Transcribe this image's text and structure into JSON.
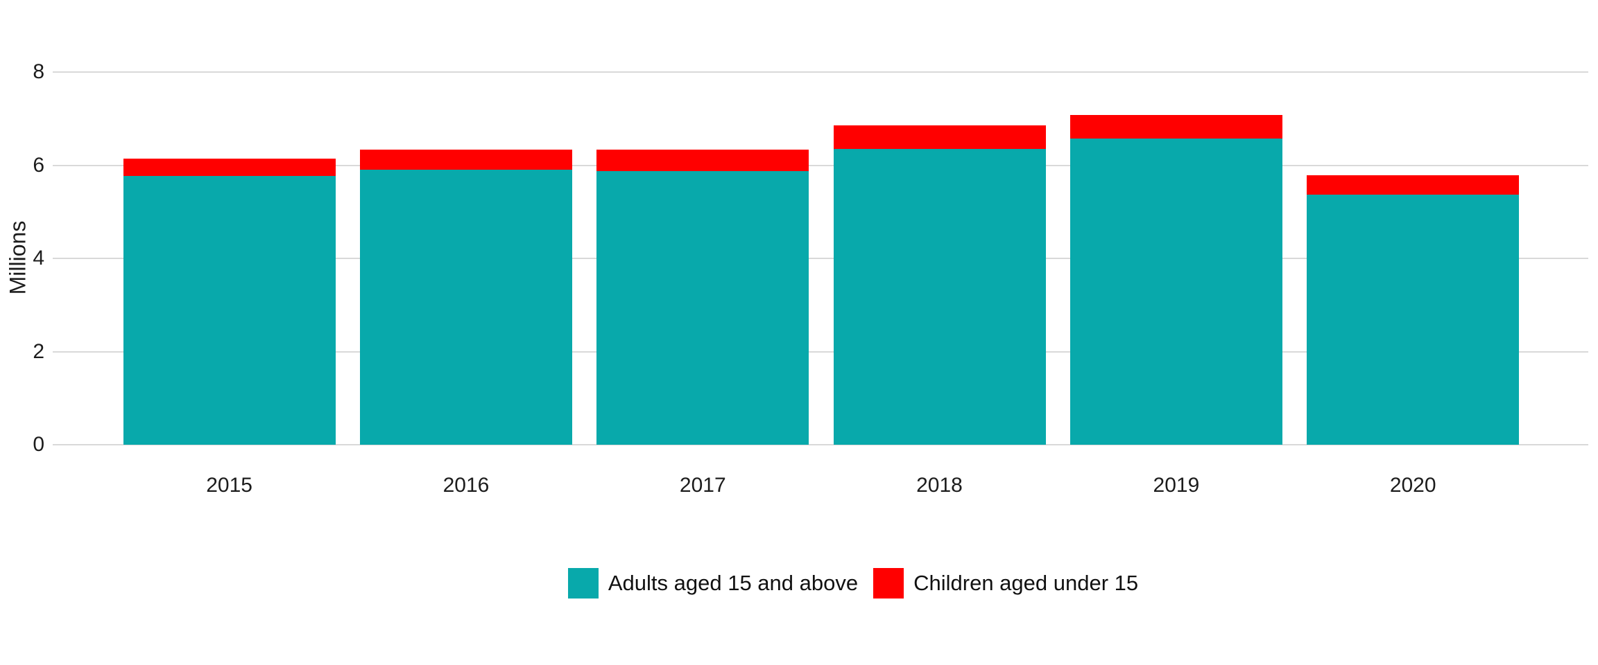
{
  "chart_data": {
    "type": "bar",
    "stacked": true,
    "title": "",
    "xlabel": "",
    "ylabel": "Millions",
    "categories": [
      "2015",
      "2016",
      "2017",
      "2018",
      "2019",
      "2020"
    ],
    "series": [
      {
        "name": "Adults aged 15 and above",
        "color": "#08a9ab",
        "values": [
          5.77,
          5.9,
          5.88,
          6.35,
          6.57,
          5.37
        ]
      },
      {
        "name": "Children aged under 15",
        "color": "#ff0000",
        "values": [
          0.37,
          0.44,
          0.45,
          0.5,
          0.51,
          0.42
        ]
      }
    ],
    "totals": [
      6.14,
      6.34,
      6.33,
      6.85,
      7.08,
      5.79
    ],
    "ylim": [
      0,
      8
    ],
    "yticks": [
      0,
      2,
      4,
      6,
      8
    ],
    "grid": true,
    "grid_color": "#d9d9d9",
    "background_color": "#ffffff",
    "text_color": "#1c1c1c",
    "legend_position": "bottom"
  }
}
